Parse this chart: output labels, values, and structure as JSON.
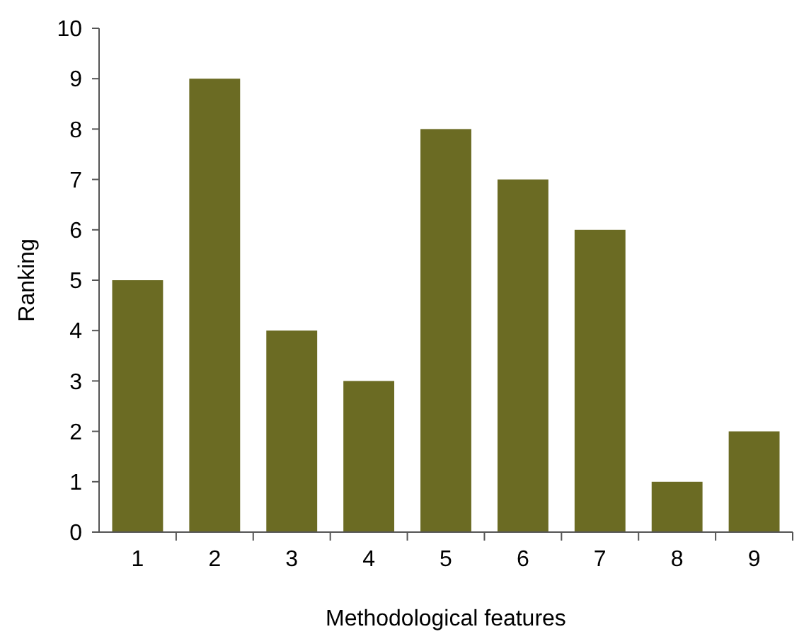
{
  "chart_data": {
    "type": "bar",
    "xlabel": "Methodological features",
    "ylabel": "Ranking",
    "categories": [
      "1",
      "2",
      "3",
      "4",
      "5",
      "6",
      "7",
      "8",
      "9"
    ],
    "values": [
      5,
      9,
      4,
      3,
      8,
      7,
      6,
      1,
      2
    ],
    "color": "#6b6b23",
    "ylim": [
      0,
      10
    ],
    "yticks": [
      0,
      1,
      2,
      3,
      4,
      5,
      6,
      7,
      8,
      9,
      10
    ],
    "grid": false
  }
}
